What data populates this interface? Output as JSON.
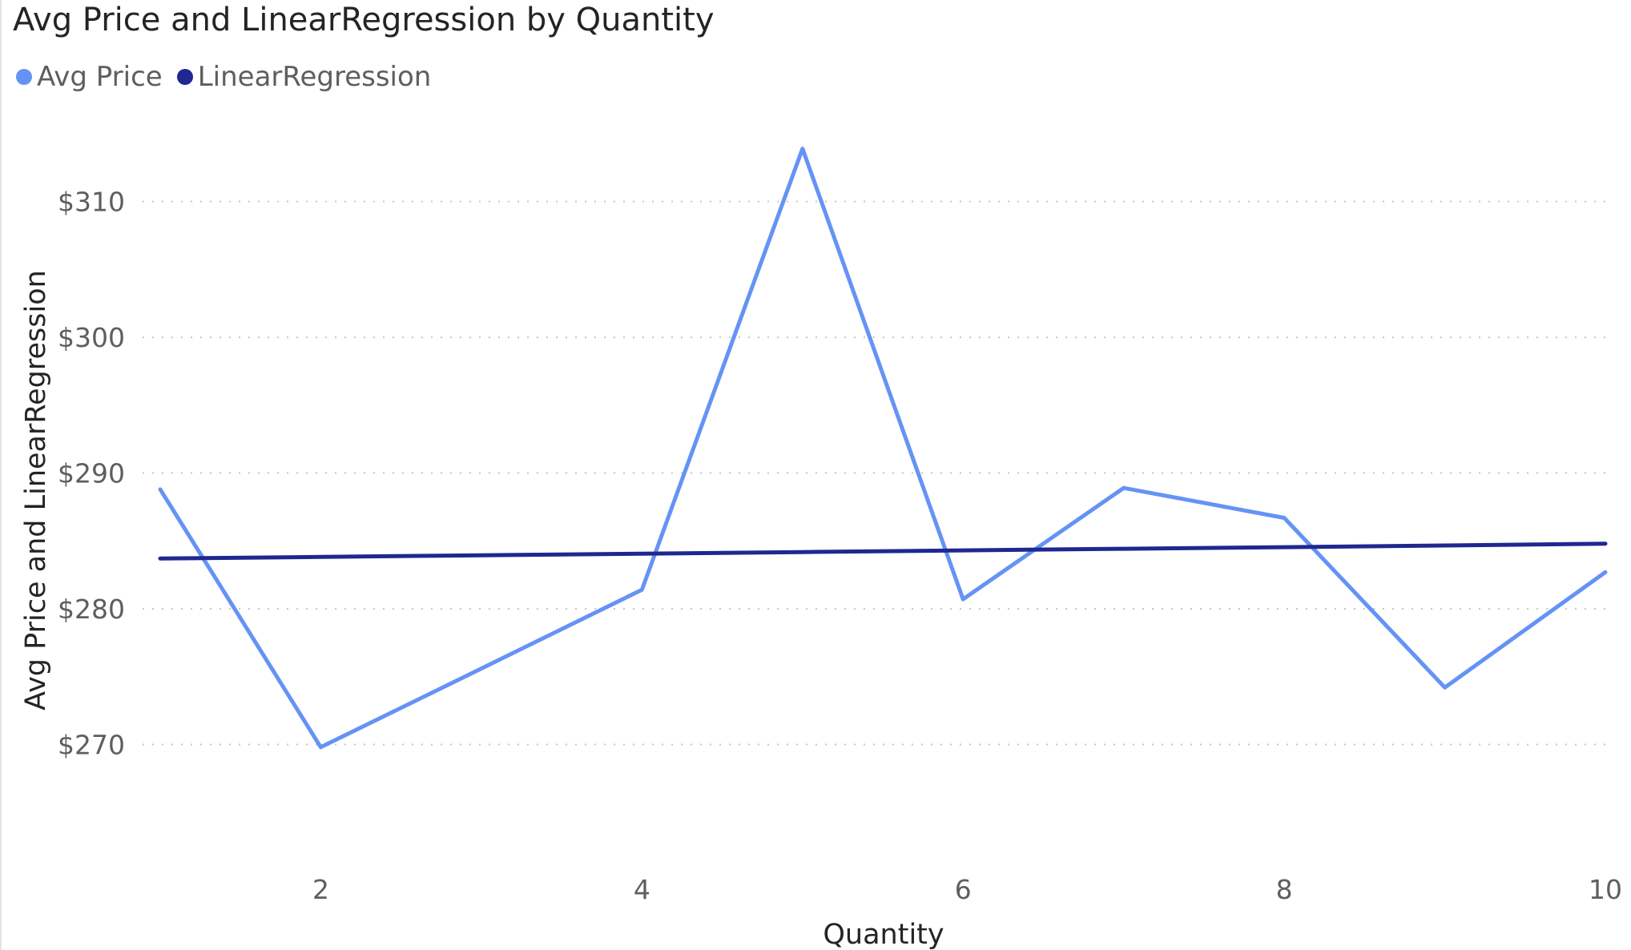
{
  "chart_data": {
    "type": "line",
    "title": "Avg Price and LinearRegression by Quantity",
    "xlabel": "Quantity",
    "ylabel": "Avg Price and LinearRegression",
    "x": [
      1,
      2,
      3,
      4,
      5,
      6,
      7,
      8,
      9,
      10
    ],
    "xlim": [
      1,
      10
    ],
    "x_ticks": [
      2,
      4,
      6,
      8,
      10
    ],
    "ylim": [
      265.6,
      316.0
    ],
    "y_ticks": [
      270,
      280,
      290,
      300,
      310
    ],
    "y_tick_labels": [
      "$270",
      "$280",
      "$290",
      "$300",
      "$310"
    ],
    "grid": "horizontal dotted",
    "legend_position": "top-left",
    "series": [
      {
        "name": "Avg Price",
        "color": "#6593f5",
        "values": [
          288.8,
          269.8,
          275.6,
          281.4,
          313.9,
          280.7,
          288.9,
          286.7,
          274.2,
          282.7
        ]
      },
      {
        "name": "LinearRegression",
        "color": "#1f2890",
        "values": [
          283.7,
          283.82,
          283.94,
          284.06,
          284.18,
          284.3,
          284.42,
          284.54,
          284.66,
          284.8
        ]
      }
    ]
  }
}
